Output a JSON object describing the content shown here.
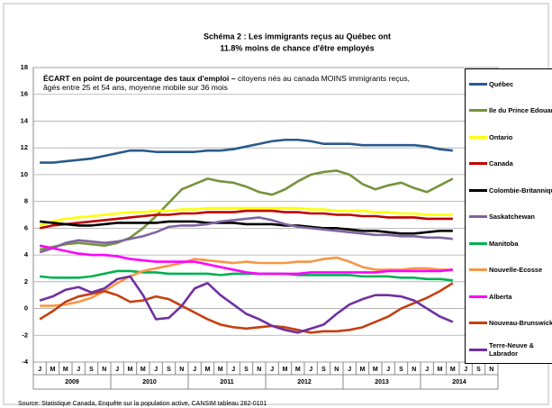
{
  "chart_data": {
    "type": "line",
    "title_lines": [
      "Schéma 2 : Les immigrants reçus au Québec ont",
      "11.8% moins de chance d'être employés"
    ],
    "subtitle_bold": "ÉCART en point de pourcentage des taux d'emploi –",
    "subtitle": "citoyens nés au canada MOINS immigrants reçus, âgés entre 25 et 54 ans, moyenne mobile sur 36 mois",
    "source": "Source: Statistique Canada, Enquête sur la population active, CANSIM tableau 282-0101",
    "categories": [
      "J",
      "M",
      "M",
      "J",
      "S",
      "N",
      "J",
      "M",
      "M",
      "J",
      "S",
      "N",
      "J",
      "M",
      "M",
      "J",
      "S",
      "N",
      "J",
      "M",
      "M",
      "J",
      "S",
      "N",
      "J",
      "M",
      "M",
      "J",
      "S",
      "N",
      "J",
      "M",
      "M",
      "J",
      "S",
      "N"
    ],
    "year_labels": [
      "2009",
      "2010",
      "2011",
      "2012",
      "2013",
      "2014"
    ],
    "ylim": [
      -4,
      18
    ],
    "yticks": [
      -4,
      -2,
      0,
      2,
      4,
      6,
      8,
      10,
      12,
      14,
      16,
      18
    ],
    "grid": true,
    "legend": "right",
    "series": [
      {
        "name": "Québec",
        "color": "#2a5a8c",
        "values": [
          10.9,
          10.9,
          11.0,
          11.1,
          11.2,
          11.4,
          11.6,
          11.8,
          11.8,
          11.7,
          11.7,
          11.7,
          11.7,
          11.8,
          11.8,
          11.9,
          12.1,
          12.3,
          12.5,
          12.6,
          12.6,
          12.5,
          12.3,
          12.3,
          12.3,
          12.2,
          12.2,
          12.2,
          12.2,
          12.2,
          12.1,
          11.9,
          11.8,
          null,
          null,
          null
        ]
      },
      {
        "name": "Ile du Prince Edouard",
        "color": "#77933c",
        "values": [
          4.4,
          4.6,
          4.8,
          4.9,
          4.8,
          4.7,
          4.9,
          5.3,
          6.0,
          6.9,
          7.9,
          8.9,
          9.3,
          9.7,
          9.5,
          9.4,
          9.1,
          8.7,
          8.5,
          8.9,
          9.5,
          10.0,
          10.2,
          10.3,
          10.0,
          9.3,
          8.9,
          9.2,
          9.4,
          9.0,
          8.7,
          9.2,
          9.7,
          null,
          null,
          null
        ]
      },
      {
        "name": "Ontario",
        "color": "#ffff00",
        "values": [
          6.2,
          6.5,
          6.7,
          6.8,
          6.9,
          7.0,
          7.1,
          7.2,
          7.2,
          7.3,
          7.3,
          7.4,
          7.4,
          7.5,
          7.5,
          7.5,
          7.5,
          7.5,
          7.5,
          7.5,
          7.5,
          7.4,
          7.4,
          7.3,
          7.3,
          7.3,
          7.2,
          7.2,
          7.1,
          7.1,
          7.0,
          7.0,
          7.0,
          null,
          null,
          null
        ]
      },
      {
        "name": "Canada",
        "color": "#c00000",
        "values": [
          6.0,
          6.2,
          6.3,
          6.4,
          6.5,
          6.6,
          6.7,
          6.8,
          6.9,
          7.0,
          7.0,
          7.1,
          7.1,
          7.2,
          7.2,
          7.2,
          7.3,
          7.3,
          7.3,
          7.2,
          7.2,
          7.1,
          7.1,
          7.0,
          7.0,
          6.9,
          6.9,
          6.8,
          6.8,
          6.8,
          6.7,
          6.7,
          6.7,
          null,
          null,
          null
        ]
      },
      {
        "name": "Colombie-Britannique",
        "color": "#000000",
        "values": [
          6.5,
          6.4,
          6.3,
          6.2,
          6.2,
          6.3,
          6.4,
          6.4,
          6.4,
          6.4,
          6.5,
          6.5,
          6.5,
          6.4,
          6.4,
          6.4,
          6.3,
          6.3,
          6.3,
          6.2,
          6.2,
          6.1,
          6.0,
          6.0,
          5.9,
          5.8,
          5.8,
          5.7,
          5.6,
          5.6,
          5.7,
          5.8,
          5.8,
          null,
          null,
          null
        ]
      },
      {
        "name": "Saskatchewan",
        "color": "#8064a2",
        "values": [
          4.2,
          4.5,
          4.9,
          5.1,
          5.0,
          4.9,
          5.0,
          5.2,
          5.4,
          5.7,
          6.1,
          6.2,
          6.2,
          6.3,
          6.5,
          6.6,
          6.7,
          6.8,
          6.6,
          6.3,
          6.1,
          6.0,
          5.9,
          5.8,
          5.7,
          5.6,
          5.5,
          5.5,
          5.4,
          5.4,
          5.3,
          5.3,
          5.2,
          null,
          null,
          null
        ]
      },
      {
        "name": "Manitoba",
        "color": "#00b050",
        "values": [
          2.4,
          2.3,
          2.3,
          2.3,
          2.4,
          2.6,
          2.8,
          2.8,
          2.7,
          2.7,
          2.6,
          2.6,
          2.6,
          2.6,
          2.5,
          2.6,
          2.6,
          2.6,
          2.6,
          2.6,
          2.5,
          2.5,
          2.5,
          2.5,
          2.5,
          2.4,
          2.4,
          2.4,
          2.3,
          2.3,
          2.2,
          2.2,
          2.1,
          null,
          null,
          null
        ]
      },
      {
        "name": "Nouvelle-Ecosse",
        "color": "#f79646",
        "values": [
          0.2,
          0.2,
          0.3,
          0.5,
          0.8,
          1.3,
          1.9,
          2.4,
          2.8,
          3.0,
          3.2,
          3.4,
          3.7,
          3.6,
          3.5,
          3.4,
          3.5,
          3.4,
          3.4,
          3.4,
          3.5,
          3.5,
          3.7,
          3.8,
          3.5,
          3.1,
          2.9,
          2.9,
          2.9,
          3.0,
          3.0,
          2.9,
          2.9,
          null,
          null,
          null
        ]
      },
      {
        "name": "Alberta",
        "color": "#ff00ff",
        "values": [
          4.7,
          4.5,
          4.3,
          4.1,
          4.0,
          4.0,
          3.9,
          3.7,
          3.6,
          3.5,
          3.5,
          3.5,
          3.5,
          3.3,
          3.1,
          2.9,
          2.7,
          2.6,
          2.6,
          2.6,
          2.6,
          2.7,
          2.7,
          2.7,
          2.7,
          2.7,
          2.7,
          2.8,
          2.8,
          2.8,
          2.8,
          2.8,
          2.9,
          null,
          null,
          null
        ]
      },
      {
        "name": "Nouveau-Brunswick",
        "color": "#c5400f",
        "values": [
          -0.8,
          -0.2,
          0.5,
          0.9,
          1.1,
          1.3,
          1.0,
          0.5,
          0.6,
          0.9,
          0.7,
          0.2,
          -0.3,
          -0.8,
          -1.2,
          -1.4,
          -1.5,
          -1.4,
          -1.3,
          -1.4,
          -1.6,
          -1.8,
          -1.7,
          -1.7,
          -1.6,
          -1.4,
          -1.0,
          -0.6,
          0.0,
          0.4,
          0.8,
          1.3,
          1.9,
          null,
          null,
          null
        ]
      },
      {
        "name": "Terre-Neuve & Labrador",
        "color": "#7030a0",
        "values": [
          0.6,
          0.9,
          1.4,
          1.6,
          1.2,
          1.5,
          2.2,
          2.4,
          1.0,
          -0.8,
          -0.7,
          0.2,
          1.5,
          1.9,
          1.0,
          0.3,
          -0.4,
          -0.8,
          -1.3,
          -1.6,
          -1.8,
          -1.5,
          -1.2,
          -0.4,
          0.3,
          0.7,
          1.0,
          1.0,
          0.9,
          0.6,
          0.0,
          -0.6,
          -1.0,
          null,
          null,
          null
        ]
      }
    ]
  }
}
